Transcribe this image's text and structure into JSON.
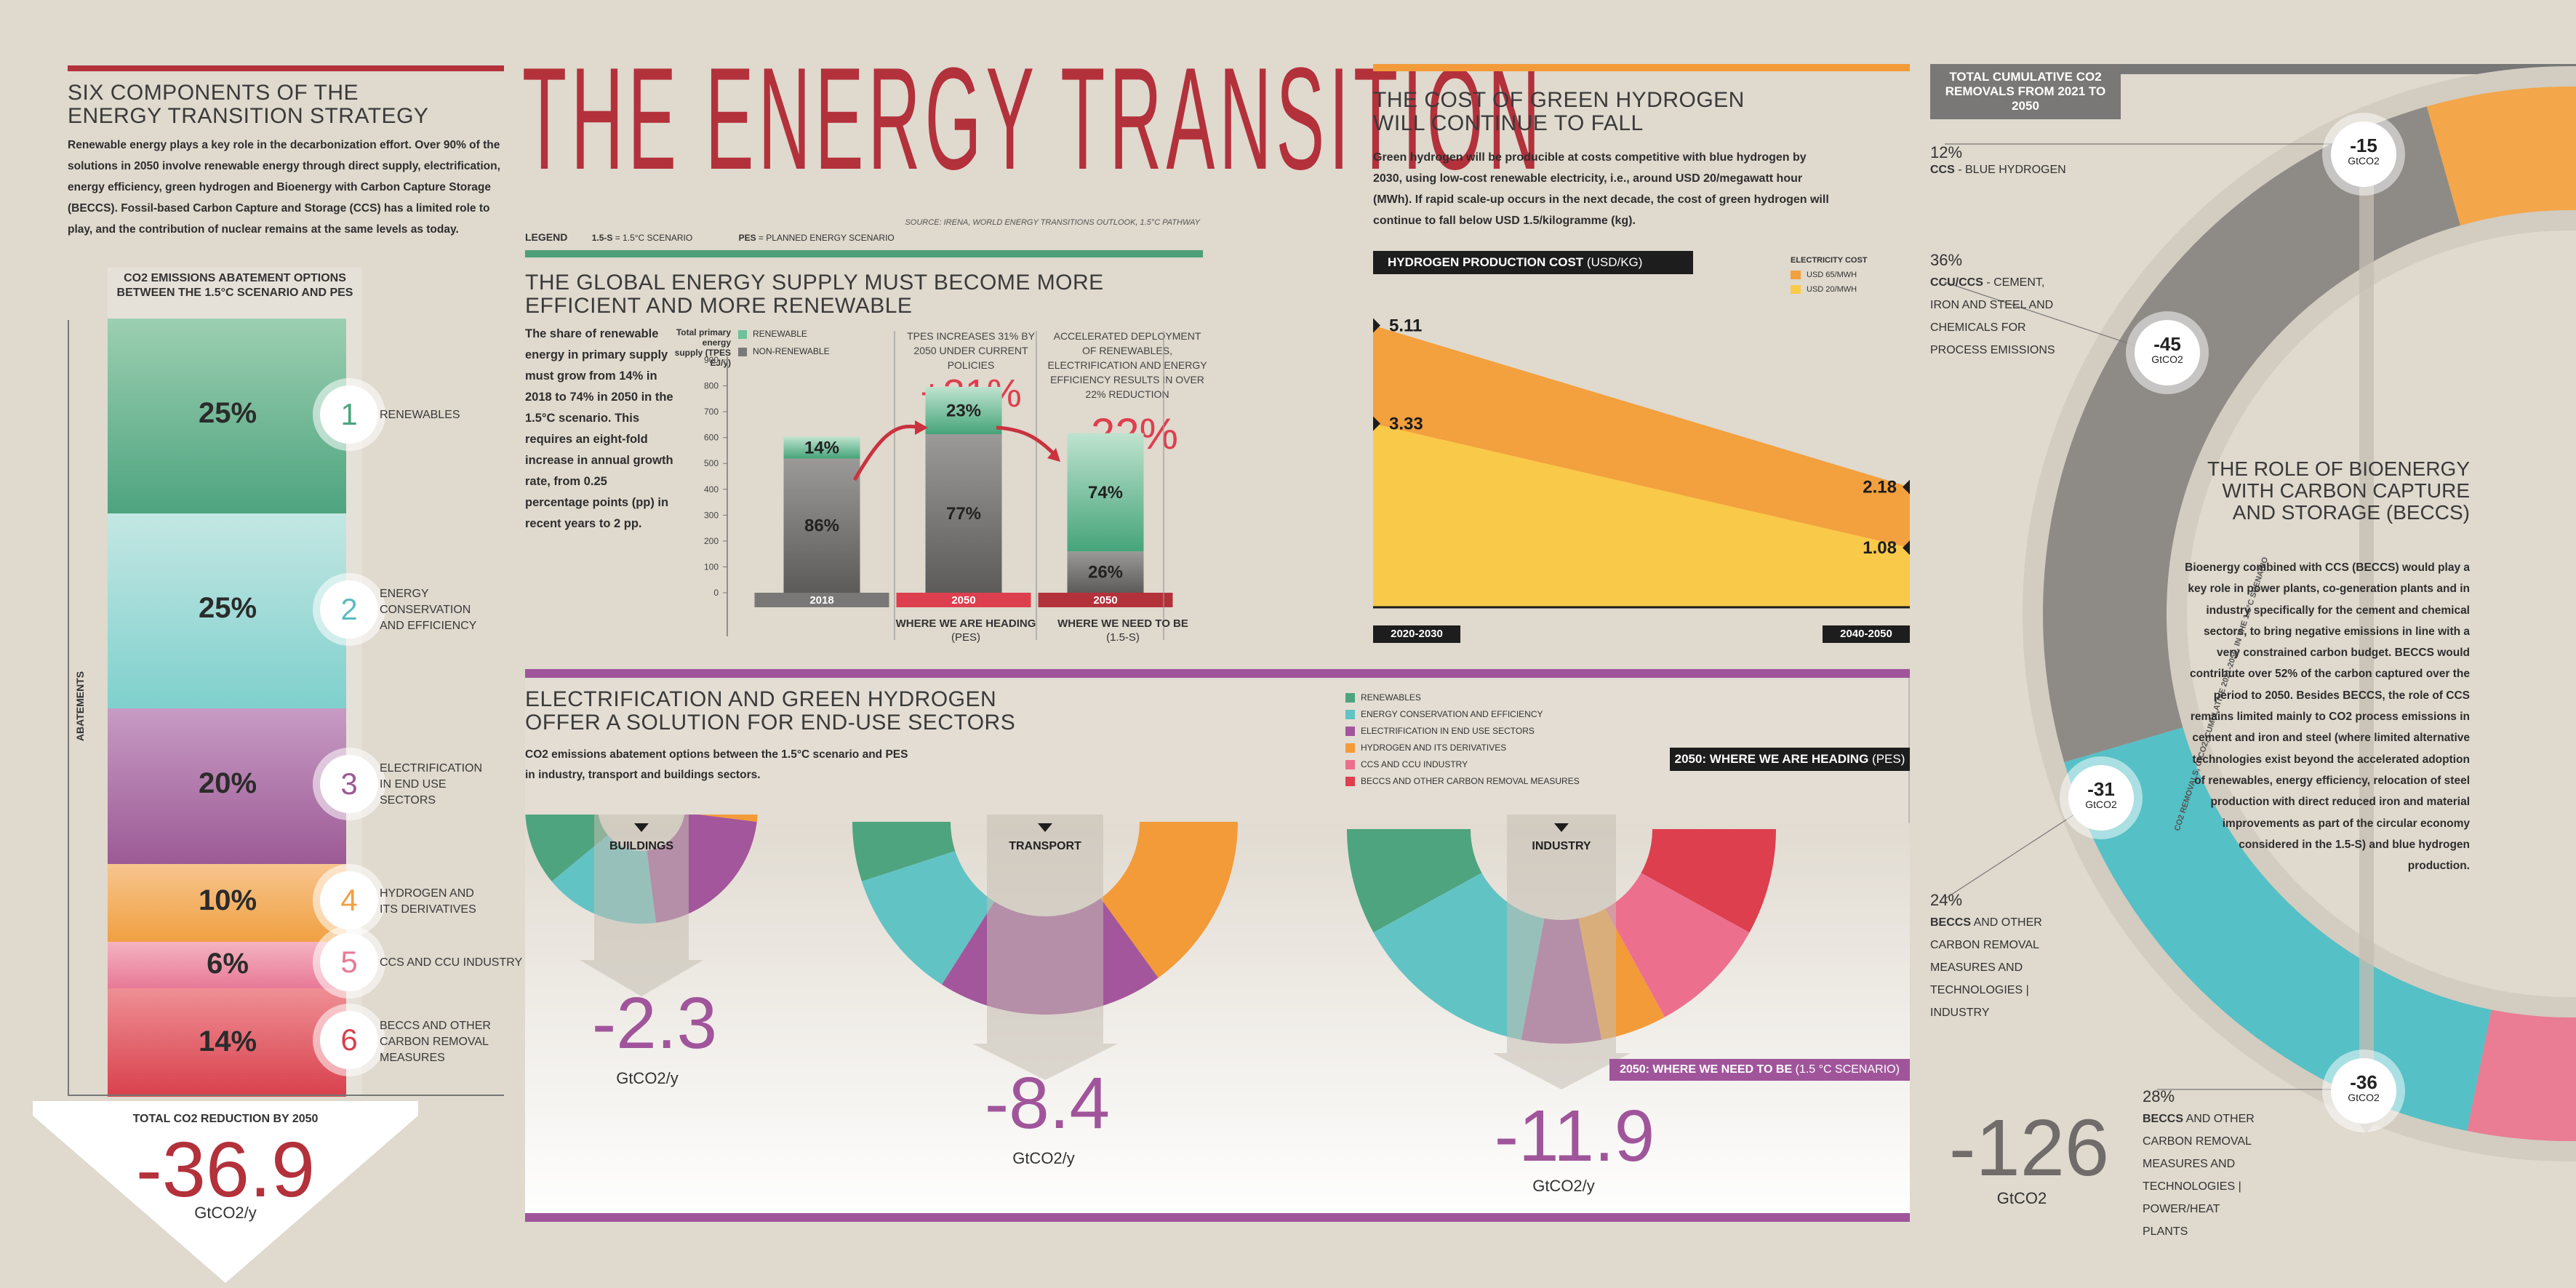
{
  "title": "THE ENERGY TRANSITION",
  "source": "SOURCE: IRENA, WORLD ENERGY TRANSITIONS OUTLOOK, 1.5°C PATHWAY",
  "legend": {
    "label": "LEGEND",
    "s15_key": "1.5-S",
    "s15_text": "= 1.5°C SCENARIO",
    "pes_key": "PES",
    "pes_text": "= PLANNED ENERGY SCENARIO"
  },
  "components": {
    "heading": "SIX COMPONENTS OF THE ENERGY TRANSITION STRATEGY",
    "text": "Renewable energy plays a key role in the decarbonization effort. Over 90% of the solutions in 2050 involve renewable energy through direct supply, electrification, energy efficiency, green hydrogen and Bioenergy with Carbon Capture Storage (BECCS). Fossil-based Carbon Capture and Storage (CCS) has a limited role to play, and the contribution of nuclear remains at the same levels as today.",
    "col_header": "CO2 EMISSIONS ABATEMENT OPTIONS BETWEEN THE 1.5°C SCENARIO AND PES",
    "axis_label": "ABATEMENTS",
    "items": [
      {
        "n": "1",
        "pct": "25%",
        "label": "RENEWABLES",
        "color": "#4ea47f"
      },
      {
        "n": "2",
        "pct": "25%",
        "label": "ENERGY CONSERVATION AND EFFICIENCY",
        "color": "#8ccfc8"
      },
      {
        "n": "3",
        "pct": "20%",
        "label": "ELECTRIFICATION IN END USE SECTORS",
        "color": "#a06ea6"
      },
      {
        "n": "4",
        "pct": "10%",
        "label": "HYDROGEN AND ITS DERIVATIVES",
        "color": "#f2a545"
      },
      {
        "n": "5",
        "pct": "6%",
        "label": "CCS AND CCU INDUSTRY",
        "color": "#ea8098"
      },
      {
        "n": "6",
        "pct": "14%",
        "label": "BECCS AND OTHER CARBON REMOVAL MEASURES",
        "color": "#dc4b58"
      }
    ],
    "total_label": "TOTAL CO2 REDUCTION BY 2050",
    "total_value": "-36.9",
    "total_unit": "GtCO2/y"
  },
  "supply": {
    "heading": "THE GLOBAL ENERGY SUPPLY MUST BECOME MORE EFFICIENT AND MORE RENEWABLE",
    "text": "The share of renewable energy in primary supply must grow from 14% in 2018 to 74% in 2050 in the 1.5°C scenario. This requires an eight-fold increase in annual growth rate, from 0.25 percentage points (pp) in recent years to 2 pp.",
    "ylabel": "Total primary energy supply (TPES EJ/y)",
    "legend_renewable": "RENEWABLE",
    "legend_nonrenewable": "NON-RENEWABLE",
    "note1": "TPES INCREASES 31% BY 2050 UNDER CURRENT POLICIES",
    "note1_big": "+31%",
    "note2": "ACCELERATED DEPLOYMENT OF RENEWABLES, ELECTRIFICATION AND ENERGY EFFICIENCY RESULTS IN OVER 22% REDUCTION",
    "note2_big": "-22%",
    "cap_pes": "WHERE WE ARE HEADING",
    "cap_pes_sub": "(PES)",
    "cap_15": "WHERE WE NEED TO BE",
    "cap_15_sub": "(1.5-S)"
  },
  "hydrogen": {
    "heading": "THE COST OF GREEN HYDROGEN WILL CONTINUE TO FALL",
    "text": "Green hydrogen will be producible at costs competitive with blue hydrogen by 2030, using low-cost renewable electricity, i.e., around USD 20/megawatt hour (MWh). If rapid scale-up occurs in the next decade, the cost of green hydrogen will continue to fall below USD 1.5/kilogramme (kg).",
    "chart_title": "HYDROGEN PRODUCTION COST",
    "chart_unit": "(USD/KG)",
    "legend_title": "ELECTRICITY COST",
    "legend_65": "USD 65/MWH",
    "legend_20": "USD 20/MWH",
    "left_label": "2020-2030",
    "right_label": "2040-2050"
  },
  "enduse": {
    "heading": "ELECTRIFICATION AND GREEN HYDROGEN OFFER A SOLUTION FOR END-USE SECTORS",
    "text": "CO2 emissions abatement options between the 1.5°C scenario and PES in industry, transport and buildings sectors.",
    "legend": [
      "RENEWABLES",
      "ENERGY CONSERVATION AND EFFICIENCY",
      "ELECTRIFICATION IN END USE SECTORS",
      "HYDROGEN AND ITS DERIVATIVES",
      "CCS AND CCU INDUSTRY",
      "BECCS AND OTHER CARBON REMOVAL MEASURES"
    ],
    "heading_tag": "2050: WHERE WE ARE HEADING",
    "heading_tag_sub": "(PES)",
    "need_tag": "2050: WHERE WE NEED TO BE",
    "need_tag_sub": "(1.5 °C SCENARIO)",
    "unit": "GtCO2/y",
    "sectors": [
      {
        "name": "BUILDINGS",
        "value": "-2.3"
      },
      {
        "name": "TRANSPORT",
        "value": "-8.4"
      },
      {
        "name": "INDUSTRY",
        "value": "-11.9"
      }
    ]
  },
  "beccs": {
    "tag": "TOTAL CUMULATIVE CO2 REMOVALS FROM 2021 TO 2050",
    "heading": "THE ROLE OF BIOENERGY WITH CARBON CAPTURE AND STORAGE (BECCS)",
    "text": "Bioenergy combined with CCS (BECCS) would play a key role in power plants, co-generation plants and in industry specifically for the cement and chemical sectors, to bring negative emissions in line with a very constrained carbon budget. BECCS would contribute over 52% of the carbon captured over the period to 2050. Besides BECCS, the role of CCS remains limited mainly to CO2 process emissions in cement and iron and steel (where limited alternative technologies exist beyond the accelerated adoption of renewables, energy efficiency, relocation of steel production with direct reduced iron and material improvements as part of the circular economy considered in the 1.5-S) and blue hydrogen production.",
    "arc_label": "CO2 REMOVALS, GtCO2, CUMULATIVE 2021-2050, IN THE 1.5°C SCENARIO",
    "segments": [
      {
        "pct": "12%",
        "label_bold": "CCS",
        "label": "- BLUE HYDROGEN",
        "value": "-15",
        "color": "#f3a64a"
      },
      {
        "pct": "36%",
        "label_bold": "CCU/CCS",
        "label": "- CEMENT, IRON AND STEEL AND CHEMICALS FOR PROCESS EMISSIONS",
        "value": "-45",
        "color": "#8e8b87"
      },
      {
        "pct": "24%",
        "label_bold": "BECCS",
        "label": "AND OTHER CARBON REMOVAL MEASURES AND TECHNOLOGIES | INDUSTRY",
        "value": "-31",
        "color": "#55c0c6"
      },
      {
        "pct": "28%",
        "label_bold": "BECCS",
        "label": "AND OTHER CARBON REMOVAL MEASURES AND TECHNOLOGIES | POWER/HEAT PLANTS",
        "value": "-36",
        "color": "#ea7c93"
      }
    ],
    "badge_unit": "GtCO2",
    "total_value": "-126",
    "total_unit": "GtCO2"
  },
  "chart_data": [
    {
      "type": "bar",
      "title": "Total primary energy supply",
      "ylabel": "Total primary energy supply (TPES EJ/y)",
      "ylim": [
        0,
        900
      ],
      "yticks": [
        0,
        100,
        200,
        300,
        400,
        500,
        600,
        700,
        800,
        900
      ],
      "categories": [
        "2018",
        "2050 (PES)",
        "2050 (1.5-S)"
      ],
      "category_labels": [
        "2018",
        "2050",
        "2050"
      ],
      "series": [
        {
          "name": "NON-RENEWABLE",
          "values": [
            519,
            613,
            160
          ],
          "labels": [
            "86%",
            "77%",
            "26%"
          ]
        },
        {
          "name": "RENEWABLE",
          "values": [
            84,
            183,
            457
          ],
          "labels": [
            "14%",
            "23%",
            "74%"
          ]
        }
      ]
    },
    {
      "type": "area",
      "title": "HYDROGEN PRODUCTION COST (USD/KG)",
      "x": [
        "2020-2030",
        "2040-2050"
      ],
      "ylim": [
        0,
        6
      ],
      "series": [
        {
          "name": "USD 65/MWH",
          "values": [
            5.11,
            2.18
          ]
        },
        {
          "name": "USD 20/MWH",
          "values": [
            3.33,
            1.08
          ]
        }
      ]
    },
    {
      "type": "pie",
      "title": "BUILDINGS",
      "categories": [
        "RENEWABLES",
        "ENERGY CONSERVATION AND EFFICIENCY",
        "ELECTRIFICATION IN END USE SECTORS",
        "HYDROGEN AND ITS DERIVATIVES"
      ],
      "values": [
        22,
        32,
        42,
        4
      ],
      "total": -2.3
    },
    {
      "type": "pie",
      "title": "TRANSPORT",
      "categories": [
        "RENEWABLES",
        "ENERGY CONSERVATION AND EFFICIENCY",
        "ELECTRIFICATION IN END USE SECTORS",
        "HYDROGEN AND ITS DERIVATIVES"
      ],
      "values": [
        10,
        22,
        38,
        30
      ],
      "total": -8.4
    },
    {
      "type": "pie",
      "title": "INDUSTRY",
      "categories": [
        "RENEWABLES",
        "ENERGY CONSERVATION AND EFFICIENCY",
        "ELECTRIFICATION IN END USE SECTORS",
        "HYDROGEN AND ITS DERIVATIVES",
        "CCS AND CCU INDUSTRY",
        "BECCS AND OTHER CARBON REMOVAL MEASURES"
      ],
      "values": [
        16,
        28,
        12,
        10,
        18,
        16
      ],
      "total": -11.9
    },
    {
      "type": "pie",
      "title": "CO2 REMOVALS, GtCO2, CUMULATIVE 2021-2050, IN THE 1.5°C SCENARIO",
      "categories": [
        "CCS - BLUE HYDROGEN",
        "CCU/CCS - CEMENT, IRON AND STEEL AND CHEMICALS FOR PROCESS EMISSIONS",
        "BECCS - INDUSTRY",
        "BECCS - POWER/HEAT PLANTS"
      ],
      "values": [
        -15,
        -45,
        -31,
        -36
      ],
      "labels": [
        "12%",
        "36%",
        "24%",
        "28%"
      ],
      "total": -126
    }
  ],
  "colors": {
    "renewables": "#4ea47f",
    "efficiency": "#62c3c4",
    "electrification": "#a3569b",
    "hydrogen": "#f39b39",
    "ccs": "#ec6f8e",
    "beccs": "#dd3f4f",
    "accent": "#b3313b",
    "green_rule": "#4e9f7a",
    "purple_rule": "#a0559b",
    "gray_bar": "#7a7877",
    "h2_65": "#f3a03e",
    "h2_20": "#f9c94a"
  }
}
